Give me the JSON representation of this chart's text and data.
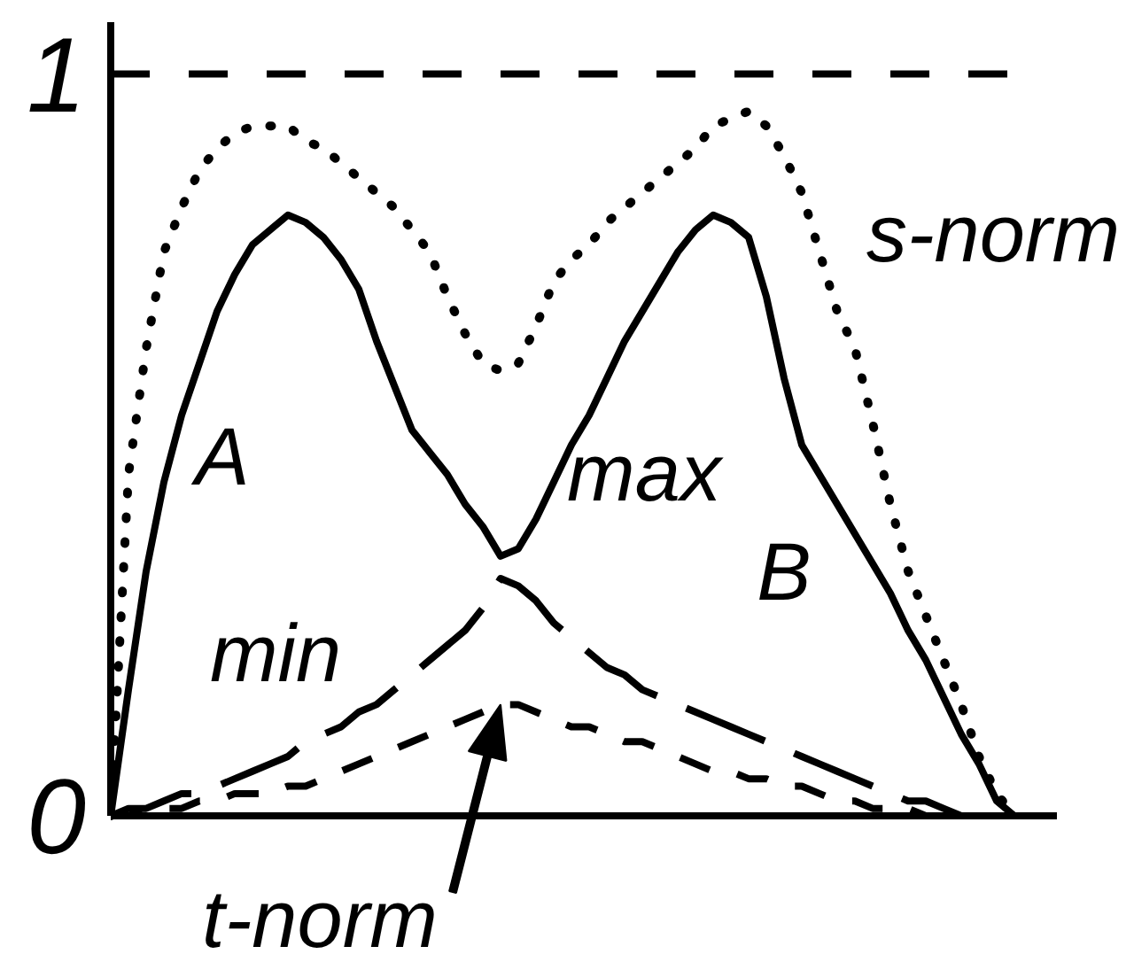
{
  "chart_data": {
    "type": "line",
    "categories": [
      null,
      null,
      null,
      null,
      null,
      null,
      null,
      null,
      null,
      null,
      null,
      null,
      null,
      null,
      null,
      null,
      null,
      null,
      null,
      null,
      null,
      null,
      null,
      null,
      null,
      null,
      null,
      null,
      null,
      null,
      null,
      null,
      null,
      null,
      null,
      null,
      null,
      null,
      null,
      null,
      null,
      null,
      null,
      null,
      null,
      null,
      null,
      null,
      null,
      null,
      null,
      null,
      null,
      null
    ],
    "series": [
      {
        "name": "max",
        "color": "#000000",
        "line_style": "solid",
        "values": [
          0,
          0.17,
          0.33,
          0.45,
          0.54,
          0.61,
          0.68,
          0.73,
          0.77,
          0.79,
          0.81,
          0.8,
          0.78,
          0.75,
          0.71,
          0.64,
          0.58,
          0.52,
          0.49,
          0.46,
          0.42,
          0.39,
          0.35,
          0.36,
          0.4,
          0.45,
          0.5,
          0.54,
          0.59,
          0.64,
          0.68,
          0.72,
          0.76,
          0.79,
          0.81,
          0.8,
          0.78,
          0.7,
          0.59,
          0.5,
          0.46,
          0.42,
          0.38,
          0.34,
          0.3,
          0.25,
          0.21,
          0.16,
          0.11,
          0.07,
          0.02,
          0,
          null,
          null
        ]
      },
      {
        "name": "min",
        "color": "#000000",
        "line_style": "dashed",
        "values": [
          0,
          0.01,
          0.01,
          0.02,
          0.03,
          0.03,
          0.04,
          0.05,
          0.06,
          0.07,
          0.08,
          0.1,
          0.11,
          0.12,
          0.14,
          0.15,
          0.17,
          0.19,
          0.21,
          0.23,
          0.25,
          0.28,
          0.32,
          0.31,
          0.29,
          0.26,
          0.24,
          0.22,
          0.2,
          0.19,
          0.17,
          0.16,
          0.15,
          0.14,
          0.13,
          0.12,
          0.11,
          0.1,
          0.09,
          0.08,
          0.07,
          0.06,
          0.05,
          0.04,
          0.03,
          0.02,
          0.02,
          0.01,
          0,
          null,
          null,
          null,
          null,
          null
        ]
      },
      {
        "name": "t-norm",
        "color": "#000000",
        "line_style": "dashed",
        "values": [
          0,
          0,
          0.01,
          0.01,
          0.01,
          0.02,
          0.02,
          0.03,
          0.03,
          0.03,
          0.04,
          0.04,
          0.05,
          0.06,
          0.07,
          0.08,
          0.09,
          0.1,
          0.11,
          0.12,
          0.13,
          0.14,
          0.15,
          0.15,
          0.14,
          0.13,
          0.12,
          0.12,
          0.11,
          0.1,
          0.1,
          0.09,
          0.08,
          0.07,
          0.06,
          0.06,
          0.05,
          0.05,
          0.04,
          0.04,
          0.03,
          0.02,
          0.02,
          0.01,
          0.01,
          0.01,
          0,
          0,
          null,
          null,
          null,
          null,
          null,
          null
        ]
      },
      {
        "name": "s-norm",
        "color": "#000000",
        "line_style": "dotted",
        "values": [
          0,
          0.46,
          0.63,
          0.76,
          0.82,
          0.87,
          0.9,
          0.92,
          0.93,
          0.93,
          0.93,
          0.91,
          0.9,
          0.88,
          0.86,
          0.84,
          0.82,
          0.79,
          0.76,
          0.7,
          0.65,
          0.61,
          0.6,
          0.61,
          0.66,
          0.72,
          0.75,
          0.77,
          0.8,
          0.82,
          0.84,
          0.86,
          0.88,
          0.9,
          0.93,
          0.94,
          0.95,
          0.93,
          0.89,
          0.84,
          0.76,
          0.68,
          0.63,
          0.53,
          0.42,
          0.33,
          0.27,
          0.21,
          0.15,
          0.08,
          0.03,
          0,
          null,
          null
        ]
      }
    ],
    "ylim": [
      0,
      1.07
    ],
    "yticks": [
      0,
      1
    ],
    "tick_labels": "y",
    "ref_lines": [
      {
        "axis": "y",
        "value": 1,
        "color": "#000000",
        "line_style": "dashed"
      }
    ],
    "annotations": [
      "A",
      "B"
    ]
  }
}
